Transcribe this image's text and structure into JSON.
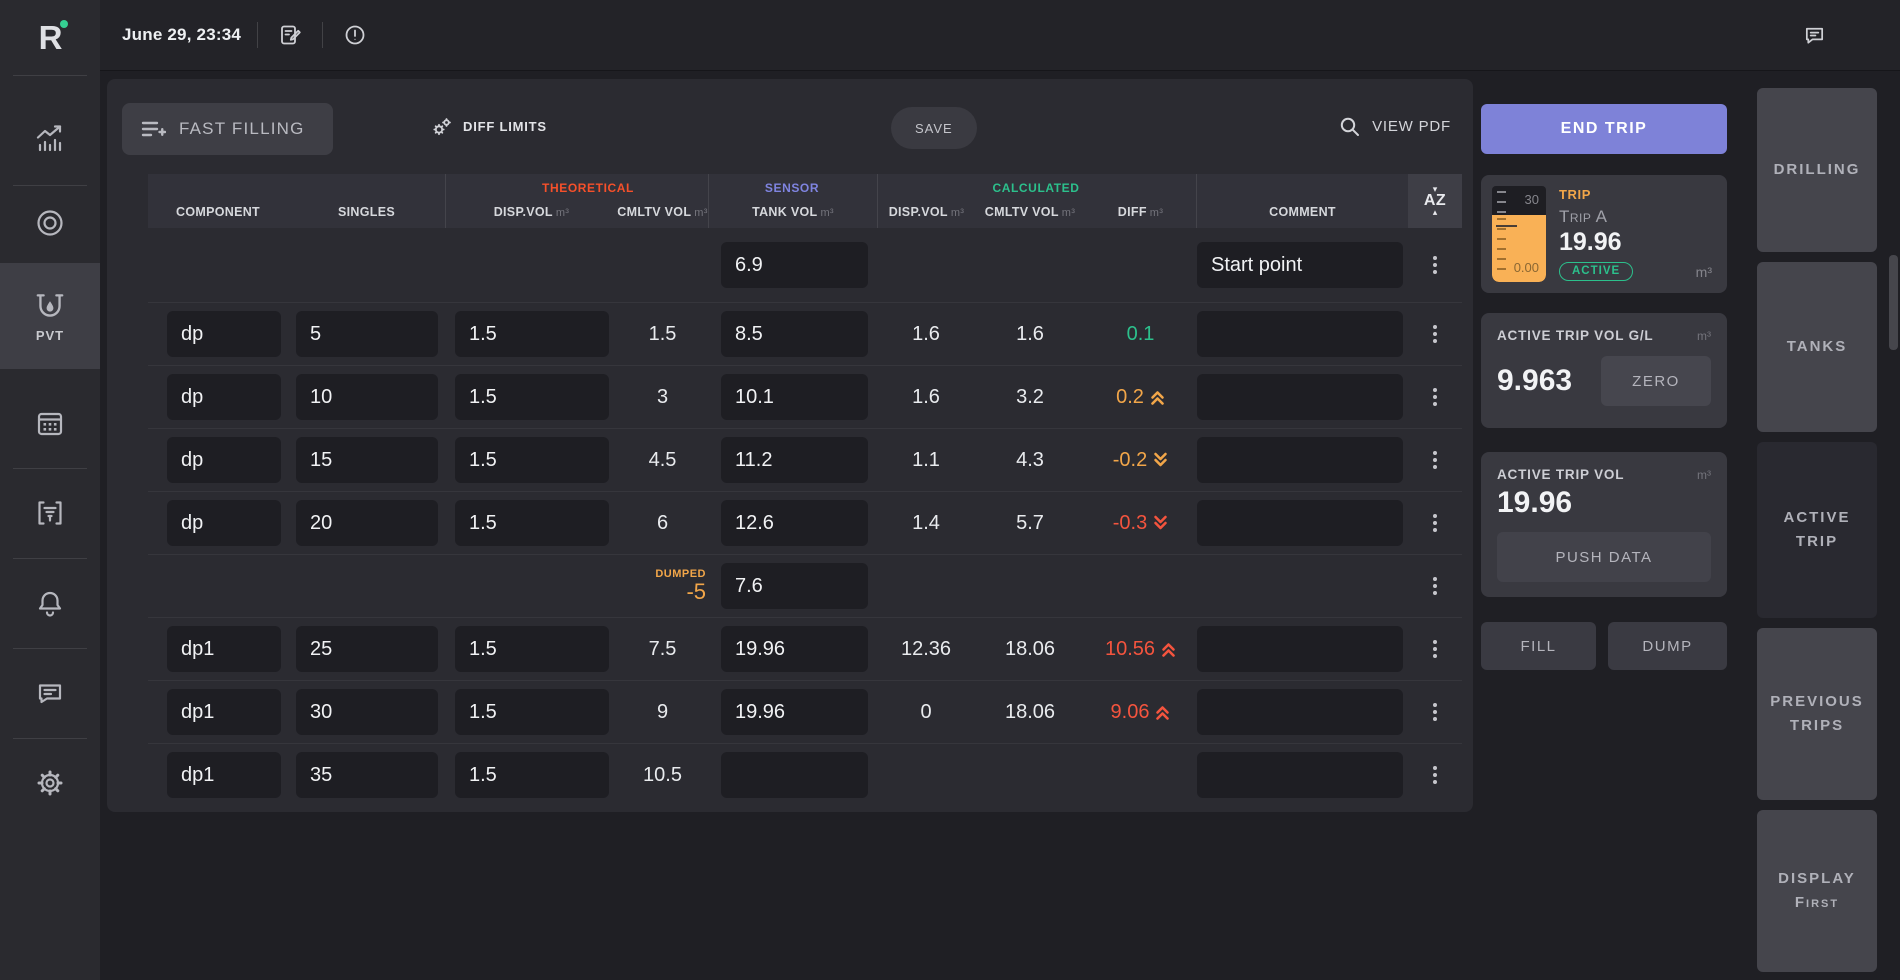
{
  "topbar": {
    "date": "June 29, 23:34"
  },
  "sidebar": {
    "pvt_label": "PVT"
  },
  "toolbar": {
    "fast_filling": "FAST FILLING",
    "diff_limits": "DIFF LIMITS",
    "save": "SAVE",
    "view_pdf": "VIEW PDF"
  },
  "table": {
    "unit": "m³",
    "sort_icon": "AZ",
    "groups": {
      "theoretical": "THEORETICAL",
      "sensor": "SENSOR",
      "calculated": "CALCULATED"
    },
    "columns": {
      "component": "COMPONENT",
      "singles": "SINGLES",
      "theo_disp": "DISP.VOL",
      "theo_cmltv": "CMLTV VOL",
      "tank": "TANK VOL",
      "calc_disp": "DISP.VOL",
      "calc_cmltv": "CMLTV VOL",
      "diff": "DIFF",
      "comment": "COMMENT"
    },
    "rows": [
      {
        "kind": "start",
        "tank_vol": "6.9",
        "comment": "Start point"
      },
      {
        "kind": "data",
        "component": "dp",
        "singles": "5",
        "theo_disp": "1.5",
        "theo_cmltv": "1.5",
        "tank_vol": "8.5",
        "calc_disp": "1.6",
        "calc_cmltv": "1.6",
        "diff": "0.1",
        "diff_color": "green",
        "diff_arrow": ""
      },
      {
        "kind": "data",
        "component": "dp",
        "singles": "10",
        "theo_disp": "1.5",
        "theo_cmltv": "3",
        "tank_vol": "10.1",
        "calc_disp": "1.6",
        "calc_cmltv": "3.2",
        "diff": "0.2",
        "diff_color": "orange",
        "diff_arrow": "up"
      },
      {
        "kind": "data",
        "component": "dp",
        "singles": "15",
        "theo_disp": "1.5",
        "theo_cmltv": "4.5",
        "tank_vol": "11.2",
        "calc_disp": "1.1",
        "calc_cmltv": "4.3",
        "diff": "-0.2",
        "diff_color": "orange",
        "diff_arrow": "down"
      },
      {
        "kind": "data",
        "component": "dp",
        "singles": "20",
        "theo_disp": "1.5",
        "theo_cmltv": "6",
        "tank_vol": "12.6",
        "calc_disp": "1.4",
        "calc_cmltv": "5.7",
        "diff": "-0.3",
        "diff_color": "red",
        "diff_arrow": "down"
      },
      {
        "kind": "dumped",
        "dumped_label": "DUMPED",
        "dumped_value": "-5",
        "tank_vol": "7.6"
      },
      {
        "kind": "data",
        "component": "dp1",
        "singles": "25",
        "theo_disp": "1.5",
        "theo_cmltv": "7.5",
        "tank_vol": "19.96",
        "calc_disp": "12.36",
        "calc_cmltv": "18.06",
        "diff": "10.56",
        "diff_color": "red",
        "diff_arrow": "up"
      },
      {
        "kind": "data",
        "component": "dp1",
        "singles": "30",
        "theo_disp": "1.5",
        "theo_cmltv": "9",
        "tank_vol": "19.96",
        "calc_disp": "0",
        "calc_cmltv": "18.06",
        "diff": "9.06",
        "diff_color": "red",
        "diff_arrow": "up"
      },
      {
        "kind": "data",
        "component": "dp1",
        "singles": "35",
        "theo_disp": "1.5",
        "theo_cmltv": "10.5",
        "tank_vol": "",
        "calc_disp": "",
        "calc_cmltv": "",
        "diff": "",
        "diff_color": "",
        "diff_arrow": ""
      }
    ]
  },
  "right_panel": {
    "end_trip_label": "END TRIP",
    "trip_card": {
      "label": "TRIP",
      "name": "Trip A",
      "value": "19.96",
      "status": "ACTIVE",
      "unit": "m³",
      "gauge_max": "30",
      "gauge_min": "0.00"
    },
    "vol_gl_card": {
      "label": "ACTIVE TRIP VOL G/L",
      "unit": "m³",
      "value": "9.963",
      "zero_label": "ZERO"
    },
    "vol_card": {
      "label": "ACTIVE TRIP VOL",
      "unit": "m³",
      "value": "19.96",
      "push_label": "PUSH DATA"
    },
    "fill_label": "FILL",
    "dump_label": "DUMP"
  },
  "tabs": [
    {
      "label": "DRILLING",
      "active": false
    },
    {
      "label": "TANKS",
      "active": false
    },
    {
      "label": "ACTIVE\nTRIP",
      "active": true
    },
    {
      "label": "PREVIOUS\nTRIPS",
      "active": false
    },
    {
      "label": "DISPLAY\nFirst",
      "active": false
    }
  ],
  "colors": {
    "theoretical": "#f6502a",
    "sensor": "#7f84e0",
    "calculated": "#2cc08c",
    "warn_orange": "#f2a649",
    "alert_red": "#f4543e",
    "accent_purple": "#7e82d8",
    "active_green": "#2cc08c",
    "gauge_orange": "#f9b156",
    "logo_green": "#35cf92"
  }
}
